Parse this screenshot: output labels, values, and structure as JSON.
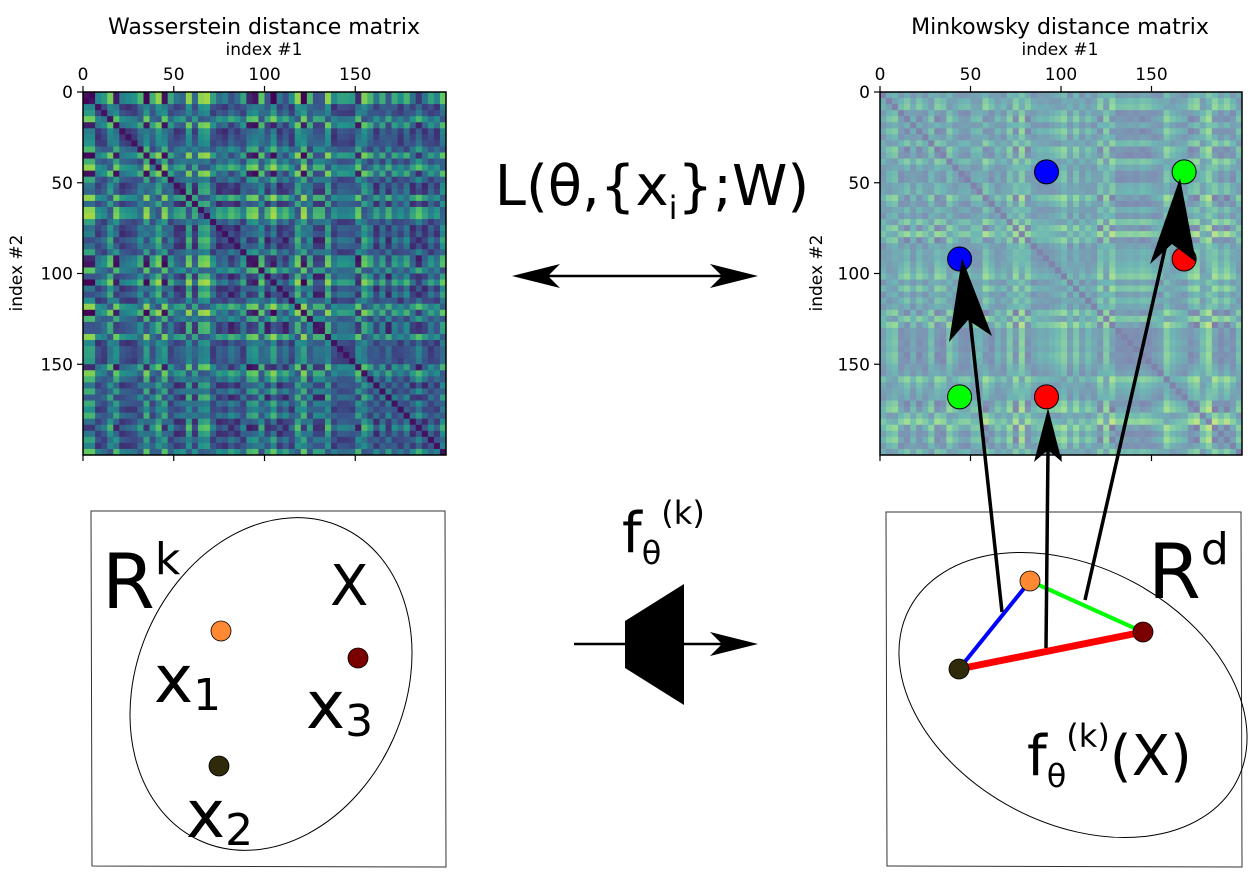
{
  "left_matrix": {
    "title": "Wasserstein distance matrix",
    "xlabel": "index #1",
    "ylabel": "index #2",
    "x_ticks": [
      "0",
      "50",
      "100",
      "150"
    ],
    "y_ticks": [
      "0",
      "50",
      "100",
      "150"
    ],
    "tick_values": [
      0,
      50,
      100,
      150
    ],
    "size": 200,
    "colormap": "viridis"
  },
  "right_matrix": {
    "title": "Minkowsky distance matrix",
    "xlabel": "index #1",
    "ylabel": "index #2",
    "x_ticks": [
      "0",
      "50",
      "100",
      "150"
    ],
    "y_ticks": [
      "0",
      "50",
      "100",
      "150"
    ],
    "tick_values": [
      0,
      50,
      100,
      150
    ],
    "size": 200,
    "colormap": "viridis (faded)",
    "highlight_points": [
      {
        "color": "#0000ff",
        "x": 92,
        "y": 44
      },
      {
        "color": "#00ff00",
        "x": 168,
        "y": 44
      },
      {
        "color": "#0000ff",
        "x": 44,
        "y": 92
      },
      {
        "color": "#ff0000",
        "x": 168,
        "y": 92
      },
      {
        "color": "#00ff00",
        "x": 44,
        "y": 168
      },
      {
        "color": "#ff0000",
        "x": 92,
        "y": 168
      }
    ]
  },
  "loss_label": {
    "main": "L(θ,{x",
    "sub": "i",
    "tail": "};W)"
  },
  "mapping_label": {
    "base": "f",
    "sub": "θ",
    "sup": "(k)"
  },
  "input_space": {
    "space_base": "R",
    "space_sup": "k",
    "set_label": "X",
    "points": [
      {
        "base": "x",
        "sub": "1",
        "color": "#ff8833"
      },
      {
        "base": "x",
        "sub": "2",
        "color": "#2e2a0a"
      },
      {
        "base": "x",
        "sub": "3",
        "color": "#7a0000"
      }
    ]
  },
  "output_space": {
    "space_base": "R",
    "space_sup": "d",
    "image_label": {
      "base": "f",
      "sub": "θ",
      "sup": "(k)",
      "tail": "(X)"
    },
    "edges": [
      {
        "color": "#0000ff"
      },
      {
        "color": "#00ff00"
      },
      {
        "color": "#ff0000"
      }
    ]
  },
  "colors": {
    "blue": "#0000ff",
    "green": "#00ff00",
    "red": "#ff0000",
    "orange": "#ff8833",
    "dark_olive": "#2e2a0a",
    "dark_red": "#7a0000"
  }
}
